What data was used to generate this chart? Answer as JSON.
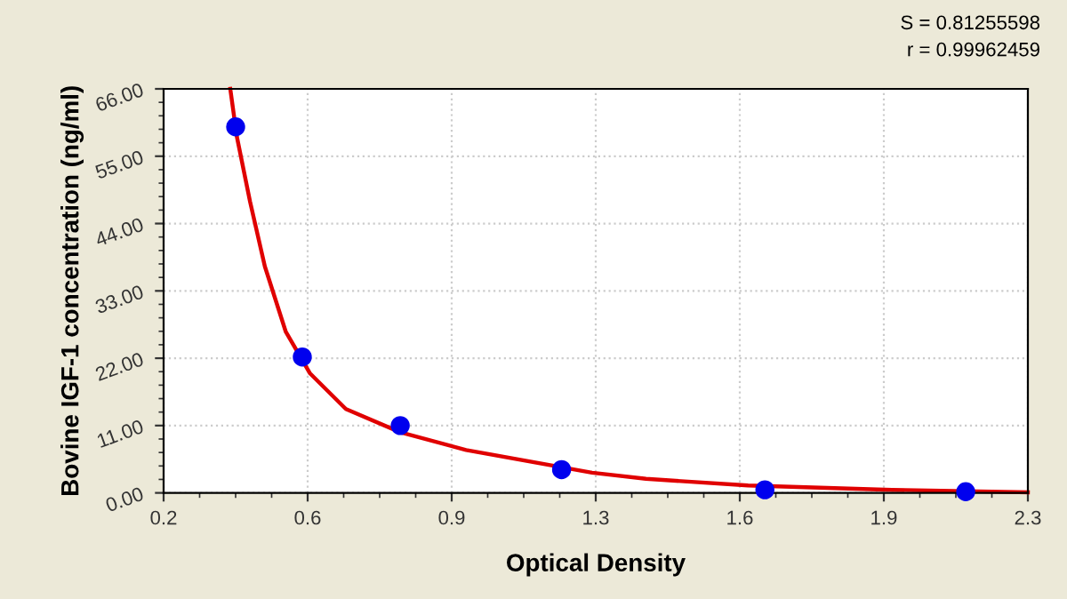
{
  "chart_data": {
    "type": "scatter",
    "xlabel": "Optical Density",
    "ylabel": "Bovine IGF-1 concentration (ng/ml)",
    "annotations": [
      "S = 0.81255598",
      "r = 0.99962459"
    ],
    "series": [
      {
        "type": "line",
        "marker": "none",
        "color": "#e00000",
        "x": [
          0.362,
          0.378,
          0.41,
          0.446,
          0.497,
          0.556,
          0.643,
          0.775,
          0.935,
          1.241,
          1.372,
          1.62,
          1.97,
          2.3
        ],
        "values": [
          66,
          58.2,
          47.6,
          37,
          26.3,
          19.5,
          13.7,
          9.9,
          7.0,
          3.3,
          2.3,
          1.2,
          0.5,
          0.1
        ]
      },
      {
        "color": "#0000ee",
        "x": [
          0.375,
          0.537,
          0.775,
          1.167,
          1.661,
          2.149
        ],
        "values": [
          59.8,
          22.2,
          11.0,
          3.8,
          0.5,
          0.2
        ]
      }
    ],
    "xlim": [
      0.2,
      2.3
    ],
    "ylim": [
      0,
      66
    ],
    "xticks": [
      0.2,
      {
        "value": 0.55,
        "label": "0.6"
      },
      0.9,
      {
        "value": 1.25,
        "label": "1.3"
      },
      1.6,
      {
        "value": 1.95,
        "label": "1.9"
      },
      2.3
    ],
    "yticks": [
      {
        "value": 0,
        "label": "0.00"
      },
      {
        "value": 11,
        "label": "11.00"
      },
      {
        "value": 22,
        "label": "22.00"
      },
      {
        "value": 33,
        "label": "33.00"
      },
      {
        "value": 44,
        "label": "44.00"
      },
      {
        "value": 55,
        "label": "55.00"
      },
      {
        "value": 66,
        "label": "66.00"
      }
    ],
    "grid": true,
    "marker": "circle"
  }
}
